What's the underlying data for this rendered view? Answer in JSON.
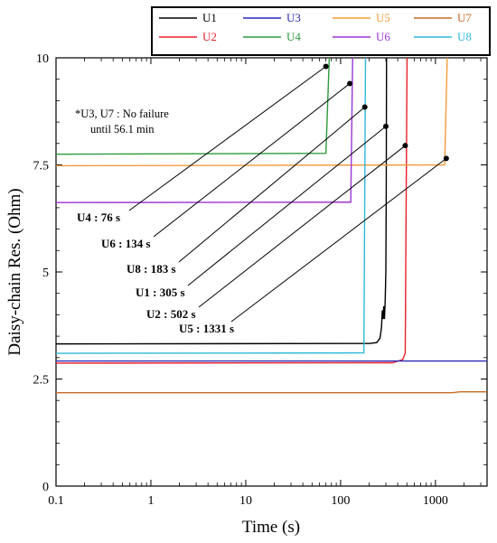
{
  "chart_data": {
    "type": "line",
    "xlabel": "Time (s)",
    "ylabel": "Daisy-chain Res. (Ohm)",
    "xscale": "log",
    "xlim": [
      0.1,
      3500
    ],
    "ylim": [
      0,
      10
    ],
    "x_ticks": [
      {
        "value": 0.1,
        "label": "0.1"
      },
      {
        "value": 1,
        "label": "1"
      },
      {
        "value": 10,
        "label": "10"
      },
      {
        "value": 100,
        "label": "100"
      },
      {
        "value": 1000,
        "label": "1000"
      }
    ],
    "y_ticks": [
      {
        "value": 0,
        "label": "0"
      },
      {
        "value": 2.5,
        "label": "2.5"
      },
      {
        "value": 5,
        "label": "5"
      },
      {
        "value": 7.5,
        "label": "7.5"
      },
      {
        "value": 10,
        "label": "10"
      }
    ],
    "grid": false,
    "legend_position": "top (above plot)",
    "series": [
      {
        "name": "U1",
        "color": "#000000",
        "points": [
          [
            0.1,
            3.32
          ],
          [
            200,
            3.33
          ],
          [
            240,
            3.35
          ],
          [
            260,
            3.45
          ],
          [
            270,
            3.7
          ],
          [
            275,
            4.1
          ],
          [
            280,
            3.9
          ],
          [
            285,
            4.2
          ],
          [
            290,
            3.9
          ],
          [
            295,
            4.3
          ],
          [
            300,
            5.0
          ],
          [
            303,
            7.0
          ],
          [
            305,
            10
          ]
        ]
      },
      {
        "name": "U2",
        "color": "#e8202a",
        "points": [
          [
            0.1,
            2.87
          ],
          [
            350,
            2.88
          ],
          [
            450,
            2.95
          ],
          [
            480,
            3.1
          ],
          [
            502,
            10
          ]
        ]
      },
      {
        "name": "U3",
        "color": "#2a2ab8",
        "points": [
          [
            0.1,
            2.92
          ],
          [
            3500,
            2.92
          ]
        ]
      },
      {
        "name": "U4",
        "color": "#2e9a3e",
        "points": [
          [
            0.1,
            7.75
          ],
          [
            70,
            7.77
          ],
          [
            76,
            10
          ]
        ]
      },
      {
        "name": "U5",
        "color": "#f39c3c",
        "points": [
          [
            0.1,
            7.48
          ],
          [
            1250,
            7.5
          ],
          [
            1331,
            10
          ]
        ]
      },
      {
        "name": "U6",
        "color": "#9b36d6",
        "points": [
          [
            0.1,
            6.62
          ],
          [
            128,
            6.63
          ],
          [
            134,
            10
          ]
        ]
      },
      {
        "name": "U7",
        "color": "#c56a26",
        "points": [
          [
            0.1,
            2.18
          ],
          [
            1500,
            2.18
          ],
          [
            1800,
            2.2
          ],
          [
            3500,
            2.2
          ]
        ]
      },
      {
        "name": "U8",
        "color": "#2eb9d8",
        "points": [
          [
            0.1,
            3.1
          ],
          [
            176,
            3.11
          ],
          [
            183,
            10
          ]
        ]
      }
    ],
    "annotations": [
      {
        "text": "U4 : 76 s",
        "series": "U4",
        "tip": [
          70,
          9.8
        ]
      },
      {
        "text": "U6 : 134 s",
        "series": "U6",
        "tip": [
          125,
          9.4
        ]
      },
      {
        "text": "U8 : 183 s",
        "series": "U8",
        "tip": [
          180,
          8.85
        ]
      },
      {
        "text": "U1 : 305 s",
        "series": "U1",
        "tip": [
          300,
          8.4
        ]
      },
      {
        "text": "U2 : 502 s",
        "series": "U2",
        "tip": [
          480,
          7.95
        ]
      },
      {
        "text": "U5 : 1331 s",
        "series": "U5",
        "tip": [
          1300,
          7.65
        ]
      }
    ],
    "note": [
      "*U3, U7 : No failure",
      "until 56.1 min"
    ]
  }
}
